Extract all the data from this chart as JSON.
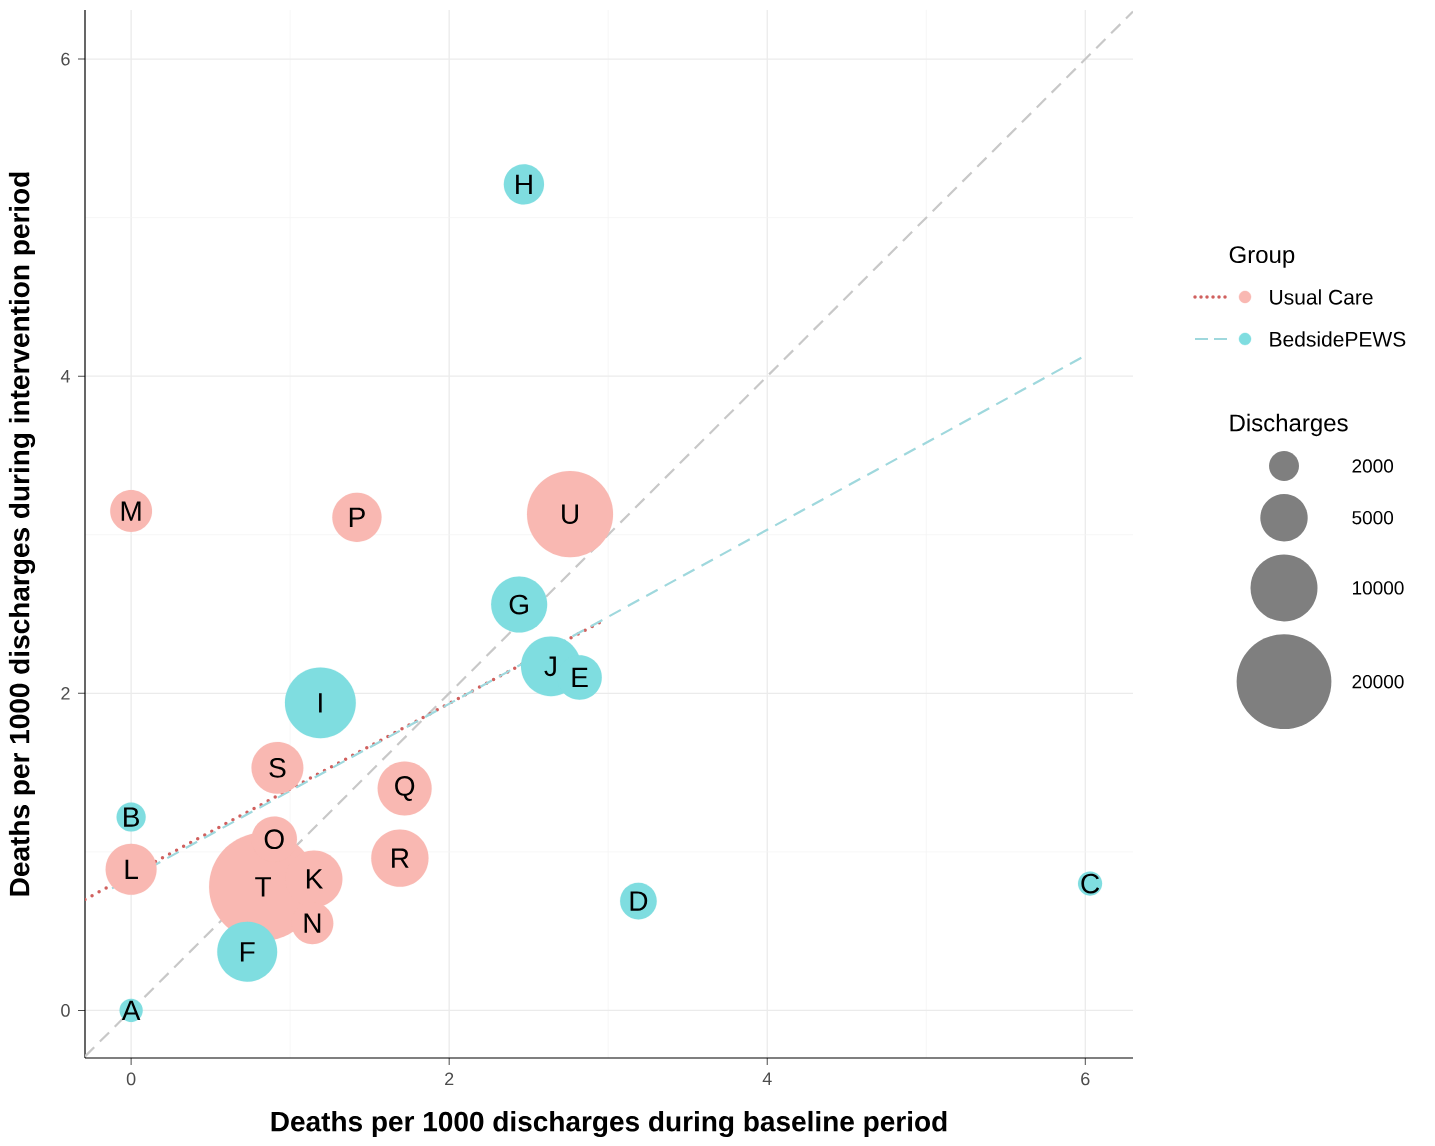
{
  "chart_data": {
    "type": "bubble",
    "xlabel": "Deaths per 1000 discharges during baseline period",
    "ylabel": "Deaths per 1000 discharges during intervention period",
    "legend_title": "Group",
    "annotations": [
      "Discharges",
      {
        "text": "A",
        "x": 0,
        "y": 0
      },
      {
        "text": "B",
        "x": 0,
        "y": 1.22
      },
      {
        "text": "C",
        "x": 6.03,
        "y": 0.8
      },
      {
        "text": "D",
        "x": 3.19,
        "y": 0.69
      },
      {
        "text": "E",
        "x": 2.82,
        "y": 2.1
      },
      {
        "text": "F",
        "x": 0.73,
        "y": 0.37
      },
      {
        "text": "G",
        "x": 2.44,
        "y": 2.56
      },
      {
        "text": "H",
        "x": 2.47,
        "y": 5.21
      },
      {
        "text": "I",
        "x": 1.19,
        "y": 1.94
      },
      {
        "text": "J",
        "x": 2.64,
        "y": 2.17
      },
      {
        "text": "K",
        "x": 1.15,
        "y": 0.83
      },
      {
        "text": "L",
        "x": 0,
        "y": 0.89
      },
      {
        "text": "M",
        "x": 0,
        "y": 3.15
      },
      {
        "text": "N",
        "x": 1.14,
        "y": 0.55
      },
      {
        "text": "O",
        "x": 0.9,
        "y": 1.08
      },
      {
        "text": "P",
        "x": 1.42,
        "y": 3.11
      },
      {
        "text": "Q",
        "x": 1.72,
        "y": 1.4
      },
      {
        "text": "R",
        "x": 1.69,
        "y": 0.96
      },
      {
        "text": "S",
        "x": 0.92,
        "y": 1.53
      },
      {
        "text": "T",
        "x": 0.83,
        "y": 0.78
      },
      {
        "text": "U",
        "x": 2.76,
        "y": 3.13
      }
    ],
    "xlim": [
      -0.29,
      6.3
    ],
    "ylim": [
      -0.3,
      6.31
    ],
    "xticks": [
      0,
      2,
      4,
      6
    ],
    "yticks": [
      0,
      2,
      4,
      6
    ],
    "grid": true,
    "legend": "right",
    "size_legend": [
      2000,
      5000,
      10000,
      20000
    ],
    "series": [
      {
        "type": "line",
        "x": [
          -0.29,
          6.3
        ],
        "values": [
          -0.29,
          6.3
        ],
        "color": "#c8c8c8",
        "line_style": "dashed"
      },
      {
        "name": "Usual Care",
        "color": "#f9b8b2",
        "marker": "circle",
        "x": [
          0.83,
          0,
          0,
          0.9,
          0.92,
          1.15,
          1.14,
          1.72,
          1.69,
          1.42,
          2.76
        ],
        "values": [
          0.78,
          0.89,
          3.15,
          1.08,
          1.53,
          0.83,
          0.55,
          1.4,
          0.96,
          3.11,
          3.13
        ],
        "sizes": [
          26000,
          5800,
          3900,
          4600,
          6000,
          7200,
          3900,
          6500,
          7300,
          5400,
          16500
        ]
      },
      {
        "name": "BedsidePEWS",
        "color": "#7fdde0",
        "marker": "circle",
        "x": [
          0,
          0,
          6.03,
          3.19,
          0.73,
          2.44,
          2.47,
          1.19,
          2.64,
          2.82
        ],
        "values": [
          0,
          1.22,
          0.8,
          0.69,
          0.37,
          2.56,
          5.21,
          1.94,
          2.17,
          2.1
        ],
        "sizes": [
          1200,
          1900,
          1300,
          3000,
          8000,
          7000,
          3600,
          11200,
          8000,
          4400
        ]
      },
      {
        "type": "line",
        "x": [
          -0.29,
          2.97
        ],
        "values": [
          0.7,
          2.46
        ],
        "color": "#d0605e",
        "line_style": "dotted"
      },
      {
        "type": "line",
        "x": [
          -0.12,
          6.0
        ],
        "values": [
          0.77,
          4.13
        ],
        "color": "#9fd8dd",
        "line_style": "dashed"
      }
    ]
  }
}
